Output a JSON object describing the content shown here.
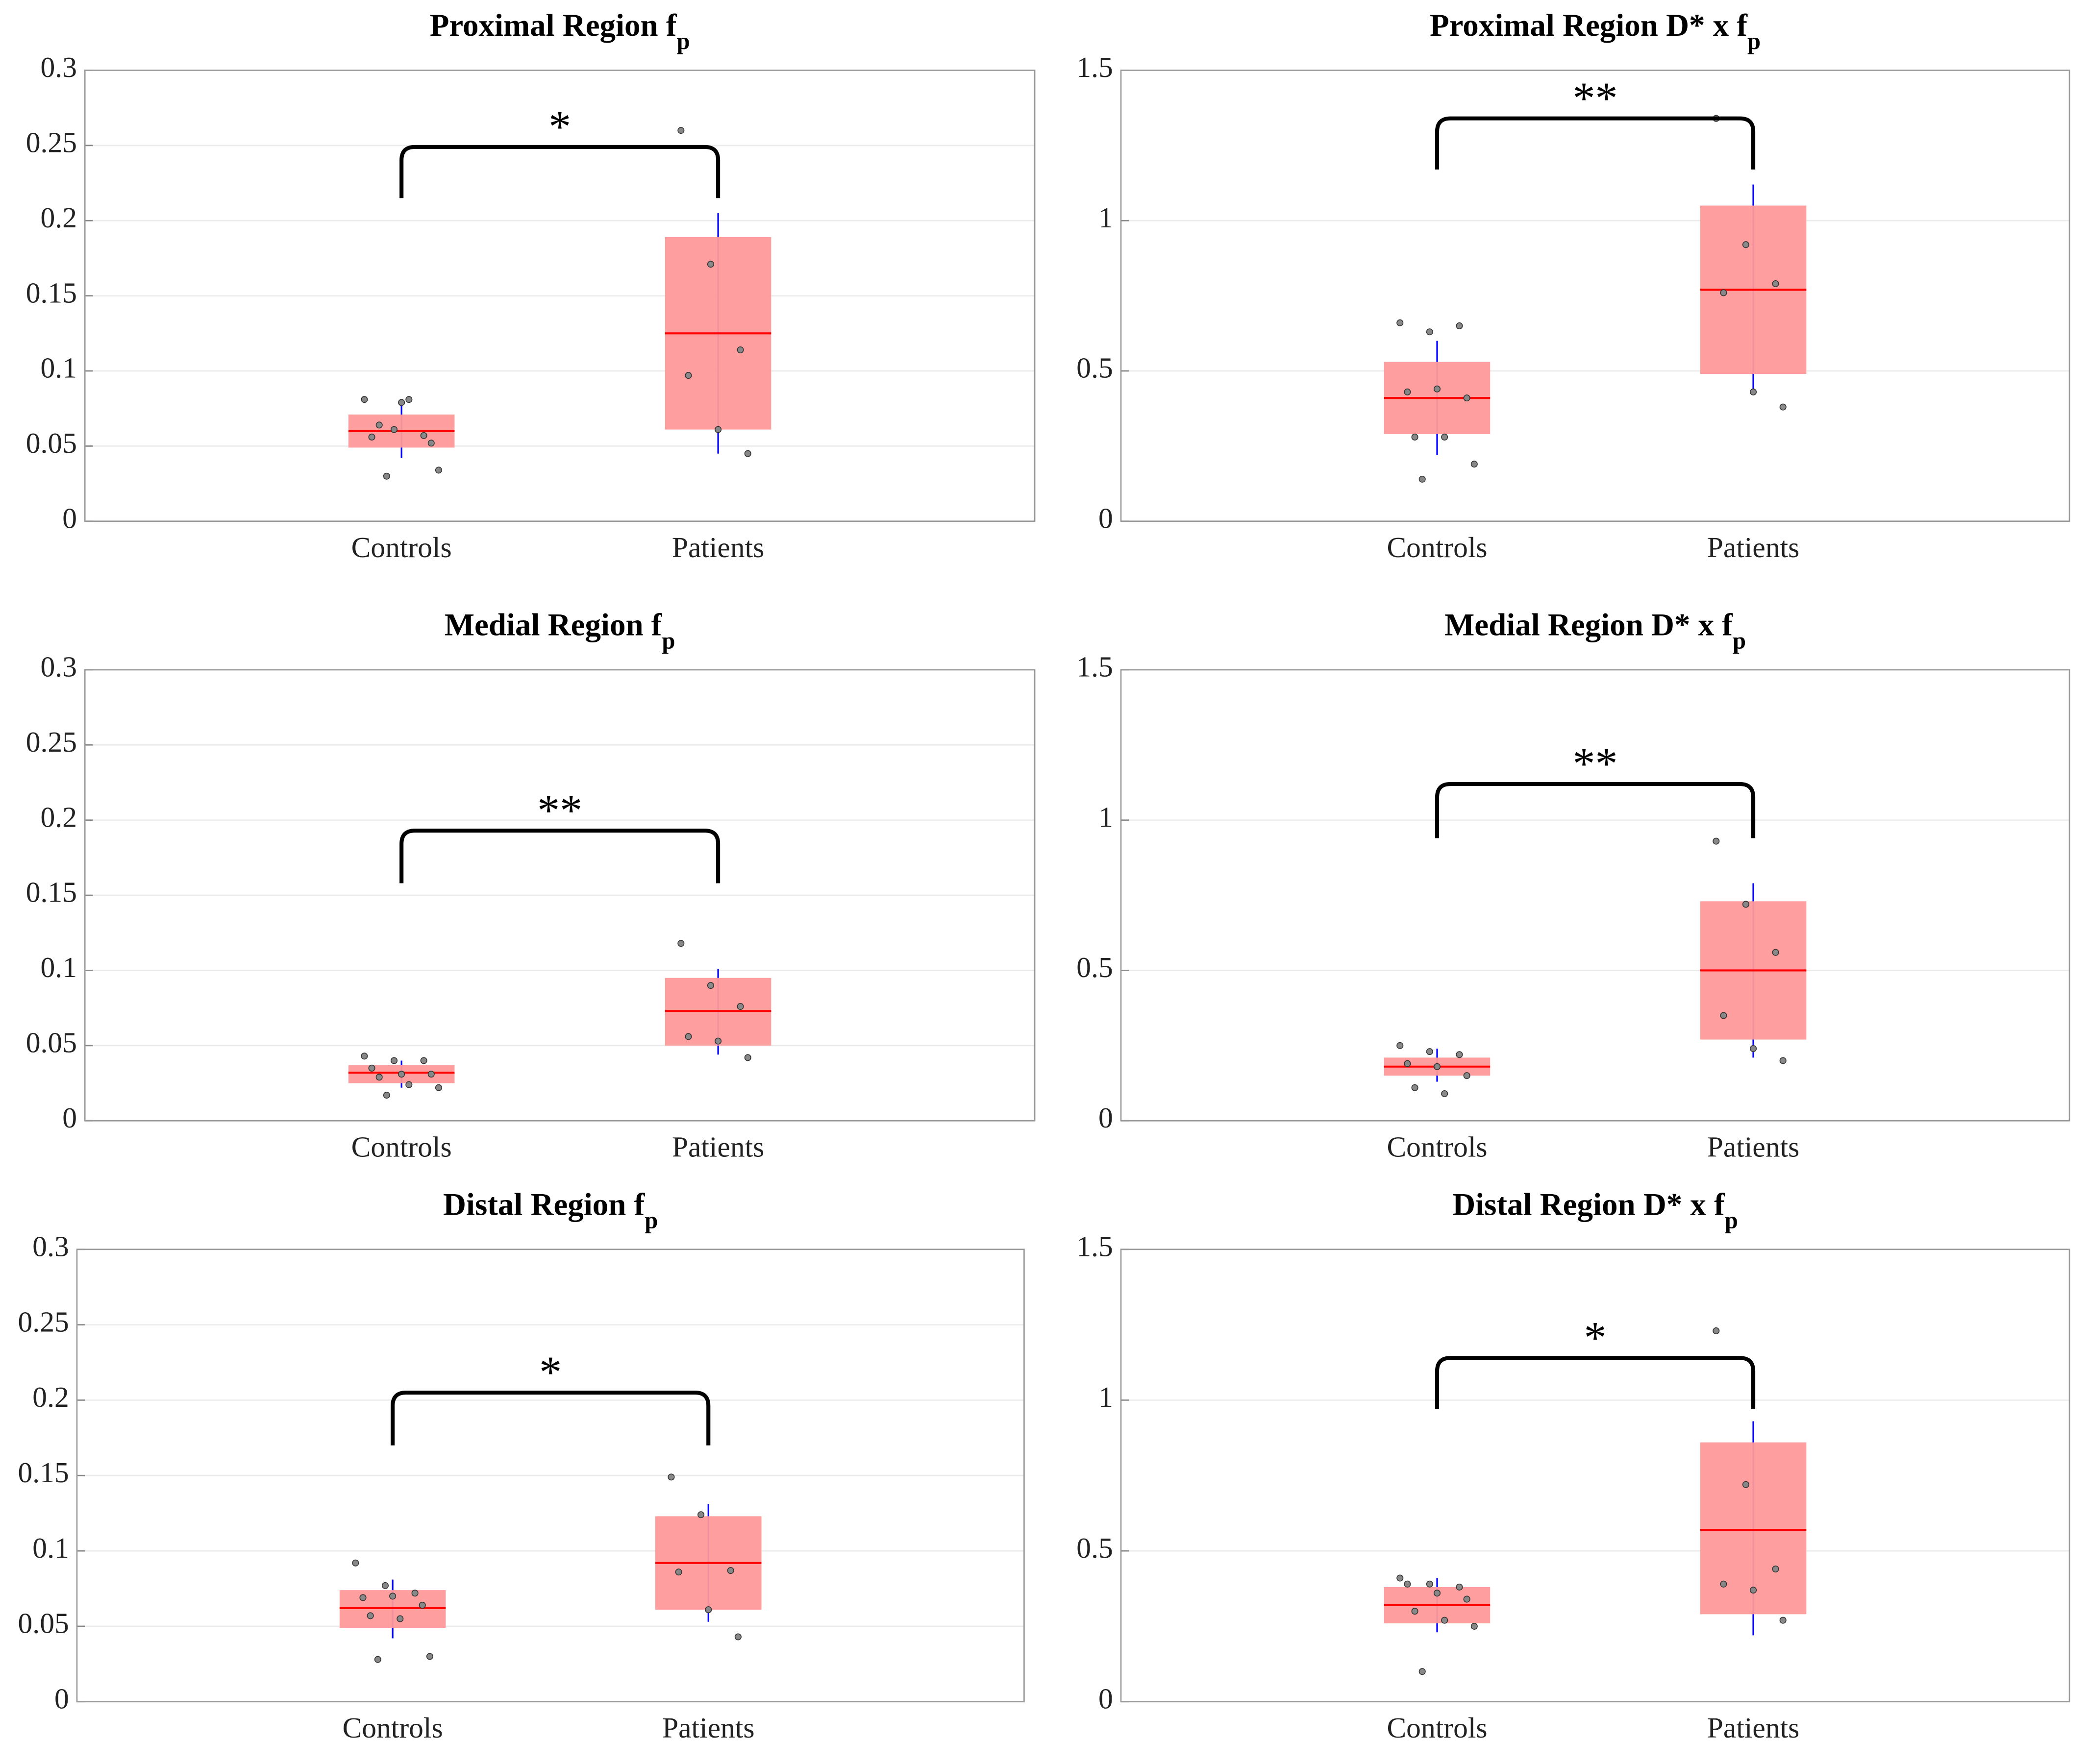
{
  "chart_data": [
    {
      "type": "box",
      "title": "Proximal Region f",
      "title_subscript": "p",
      "categories": [
        "Controls",
        "Patients"
      ],
      "ylim": [
        0,
        0.3
      ],
      "yticks": [
        0,
        0.05,
        0.1,
        0.15,
        0.2,
        0.25,
        0.3
      ],
      "grid": true,
      "box_color": "#ff9999",
      "median_color": "#ff0000",
      "whisker_color": "#0000ff",
      "point_color": "#888888",
      "boxes": [
        {
          "q1": 0.049,
          "median": 0.06,
          "q3": 0.071,
          "whisker_low": 0.042,
          "whisker_high": 0.079,
          "points": [
            0.081,
            0.061,
            0.057,
            0.056,
            0.079,
            0.052,
            0.064,
            0.081,
            0.034,
            0.03
          ]
        },
        {
          "q1": 0.061,
          "median": 0.125,
          "q3": 0.189,
          "whisker_low": 0.045,
          "whisker_high": 0.205,
          "points": [
            0.26,
            0.171,
            0.114,
            0.097,
            0.061,
            0.045
          ]
        }
      ],
      "bracket": {
        "label": "*",
        "y": 0.249,
        "y_end": 0.215
      }
    },
    {
      "type": "box",
      "title": "Proximal Region D* x f",
      "title_subscript": "p",
      "categories": [
        "Controls",
        "Patients"
      ],
      "ylim": [
        0,
        1.5
      ],
      "yticks": [
        0,
        0.5,
        1,
        1.5
      ],
      "grid": true,
      "box_color": "#ff9999",
      "median_color": "#ff0000",
      "whisker_color": "#0000ff",
      "point_color": "#888888",
      "boxes": [
        {
          "q1": 0.29,
          "median": 0.41,
          "q3": 0.53,
          "whisker_low": 0.22,
          "whisker_high": 0.6,
          "points": [
            0.66,
            0.63,
            0.65,
            0.43,
            0.44,
            0.41,
            0.28,
            0.28,
            0.19,
            0.14
          ]
        },
        {
          "q1": 0.49,
          "median": 0.77,
          "q3": 1.05,
          "whisker_low": 0.42,
          "whisker_high": 1.12,
          "points": [
            1.34,
            0.92,
            0.79,
            0.76,
            0.43,
            0.38
          ]
        }
      ],
      "bracket": {
        "label": "**",
        "y": 1.34,
        "y_end": 1.17
      }
    },
    {
      "type": "box",
      "title": "Medial Region f",
      "title_subscript": "p",
      "categories": [
        "Controls",
        "Patients"
      ],
      "ylim": [
        0,
        0.3
      ],
      "yticks": [
        0,
        0.05,
        0.1,
        0.15,
        0.2,
        0.25,
        0.3
      ],
      "grid": true,
      "box_color": "#ff9999",
      "median_color": "#ff0000",
      "whisker_color": "#0000ff",
      "point_color": "#888888",
      "boxes": [
        {
          "q1": 0.025,
          "median": 0.032,
          "q3": 0.037,
          "whisker_low": 0.022,
          "whisker_high": 0.04,
          "points": [
            0.043,
            0.04,
            0.04,
            0.035,
            0.031,
            0.031,
            0.029,
            0.024,
            0.022,
            0.017
          ]
        },
        {
          "q1": 0.05,
          "median": 0.073,
          "q3": 0.095,
          "whisker_low": 0.044,
          "whisker_high": 0.101,
          "points": [
            0.118,
            0.09,
            0.076,
            0.056,
            0.053,
            0.042
          ]
        }
      ],
      "bracket": {
        "label": "**",
        "y": 0.193,
        "y_end": 0.158
      }
    },
    {
      "type": "box",
      "title": "Medial Region D* x f",
      "title_subscript": "p",
      "categories": [
        "Controls",
        "Patients"
      ],
      "ylim": [
        0,
        1.5
      ],
      "yticks": [
        0,
        0.5,
        1,
        1.5
      ],
      "grid": true,
      "box_color": "#ff9999",
      "median_color": "#ff0000",
      "whisker_color": "#0000ff",
      "point_color": "#888888",
      "boxes": [
        {
          "q1": 0.15,
          "median": 0.18,
          "q3": 0.21,
          "whisker_low": 0.13,
          "whisker_high": 0.24,
          "points": [
            0.25,
            0.23,
            0.22,
            0.19,
            0.18,
            0.15,
            0.11,
            0.09
          ]
        },
        {
          "q1": 0.27,
          "median": 0.5,
          "q3": 0.73,
          "whisker_low": 0.21,
          "whisker_high": 0.79,
          "points": [
            0.93,
            0.72,
            0.56,
            0.35,
            0.24,
            0.2
          ]
        }
      ],
      "bracket": {
        "label": "**",
        "y": 1.12,
        "y_end": 0.94
      }
    },
    {
      "type": "box",
      "title": "Distal Region f",
      "title_subscript": "p",
      "categories": [
        "Controls",
        "Patients"
      ],
      "ylim": [
        0,
        0.3
      ],
      "yticks": [
        0,
        0.05,
        0.1,
        0.15,
        0.2,
        0.25,
        0.3
      ],
      "grid": true,
      "box_color": "#ff9999",
      "median_color": "#ff0000",
      "whisker_color": "#0000ff",
      "point_color": "#888888",
      "boxes": [
        {
          "q1": 0.049,
          "median": 0.062,
          "q3": 0.074,
          "whisker_low": 0.042,
          "whisker_high": 0.081,
          "points": [
            0.092,
            0.077,
            0.072,
            0.069,
            0.07,
            0.064,
            0.057,
            0.055,
            0.03,
            0.028
          ]
        },
        {
          "q1": 0.061,
          "median": 0.092,
          "q3": 0.123,
          "whisker_low": 0.053,
          "whisker_high": 0.131,
          "points": [
            0.149,
            0.124,
            0.087,
            0.086,
            0.061,
            0.043
          ]
        }
      ],
      "bracket": {
        "label": "*",
        "y": 0.205,
        "y_end": 0.17
      }
    },
    {
      "type": "box",
      "title": "Distal Region D* x f",
      "title_subscript": "p",
      "categories": [
        "Controls",
        "Patients"
      ],
      "ylim": [
        0,
        1.5
      ],
      "yticks": [
        0,
        0.5,
        1,
        1.5
      ],
      "grid": true,
      "box_color": "#ff9999",
      "median_color": "#ff0000",
      "whisker_color": "#0000ff",
      "point_color": "#888888",
      "boxes": [
        {
          "q1": 0.26,
          "median": 0.32,
          "q3": 0.38,
          "whisker_low": 0.23,
          "whisker_high": 0.41,
          "points": [
            0.41,
            0.39,
            0.38,
            0.39,
            0.36,
            0.34,
            0.3,
            0.27,
            0.25,
            0.1
          ]
        },
        {
          "q1": 0.29,
          "median": 0.57,
          "q3": 0.86,
          "whisker_low": 0.22,
          "whisker_high": 0.93,
          "points": [
            1.23,
            0.72,
            0.44,
            0.39,
            0.37,
            0.27
          ]
        }
      ],
      "bracket": {
        "label": "*",
        "y": 1.14,
        "y_end": 0.97
      }
    }
  ]
}
